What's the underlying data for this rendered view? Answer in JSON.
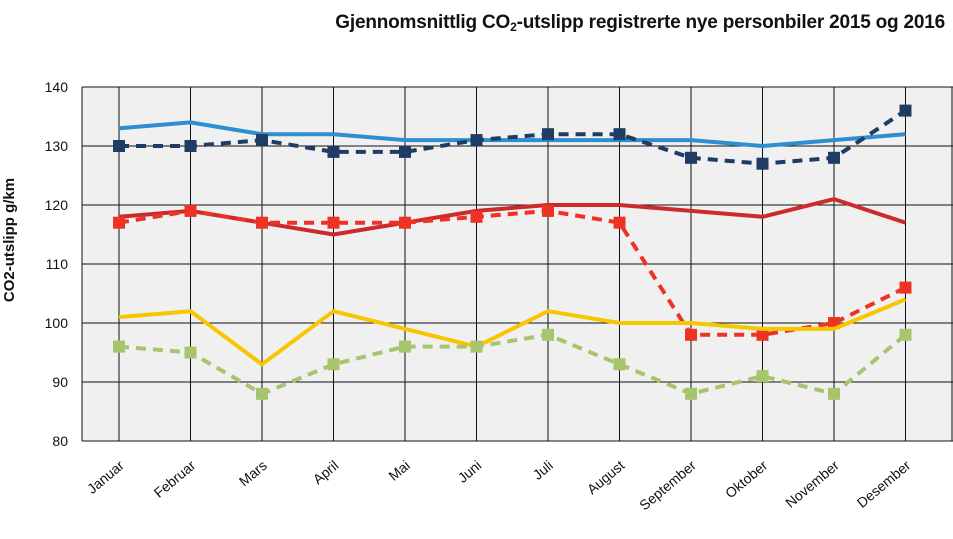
{
  "chart_data": {
    "type": "line",
    "title_main": "Gjennomsnittlig CO",
    "title_sub": "2",
    "title_rest": "-utslipp registrerte nye personbiler 2015 og 2016",
    "ylabel": "CO2-utslipp g/km",
    "xlabel": "",
    "ylim": [
      80,
      140
    ],
    "yticks": [
      "80",
      "90",
      "100",
      "110",
      "120",
      "130",
      "140"
    ],
    "grid": true,
    "legend": "none",
    "categories": [
      "Januar",
      "Februar",
      "Mars",
      "April",
      "Mai",
      "Juni",
      "Juli",
      "August",
      "September",
      "Oktober",
      "November",
      "Desember"
    ],
    "series": [
      {
        "color": "#2e8fd0",
        "dashed": false,
        "marker": false,
        "values": [
          133,
          134,
          132,
          132,
          131,
          131,
          131,
          131,
          131,
          130,
          131,
          132
        ]
      },
      {
        "color": "#1f3c64",
        "dashed": true,
        "marker": true,
        "values": [
          130,
          130,
          131,
          129,
          129,
          131,
          132,
          132,
          128,
          127,
          128,
          136
        ]
      },
      {
        "color": "#cc2a2c",
        "dashed": false,
        "marker": false,
        "values": [
          118,
          119,
          117,
          115,
          117,
          119,
          120,
          120,
          119,
          118,
          121,
          117
        ]
      },
      {
        "color": "#ee3224",
        "dashed": true,
        "marker": true,
        "values": [
          117,
          119,
          117,
          117,
          117,
          118,
          119,
          117,
          98,
          98,
          100,
          106
        ]
      },
      {
        "color": "#f7c600",
        "dashed": false,
        "marker": false,
        "values": [
          101,
          102,
          93,
          102,
          99,
          96,
          102,
          100,
          100,
          99,
          99,
          104
        ]
      },
      {
        "color": "#a6c56c",
        "dashed": true,
        "marker": true,
        "values": [
          96,
          95,
          88,
          93,
          96,
          96,
          98,
          93,
          88,
          91,
          88,
          98
        ]
      }
    ]
  }
}
